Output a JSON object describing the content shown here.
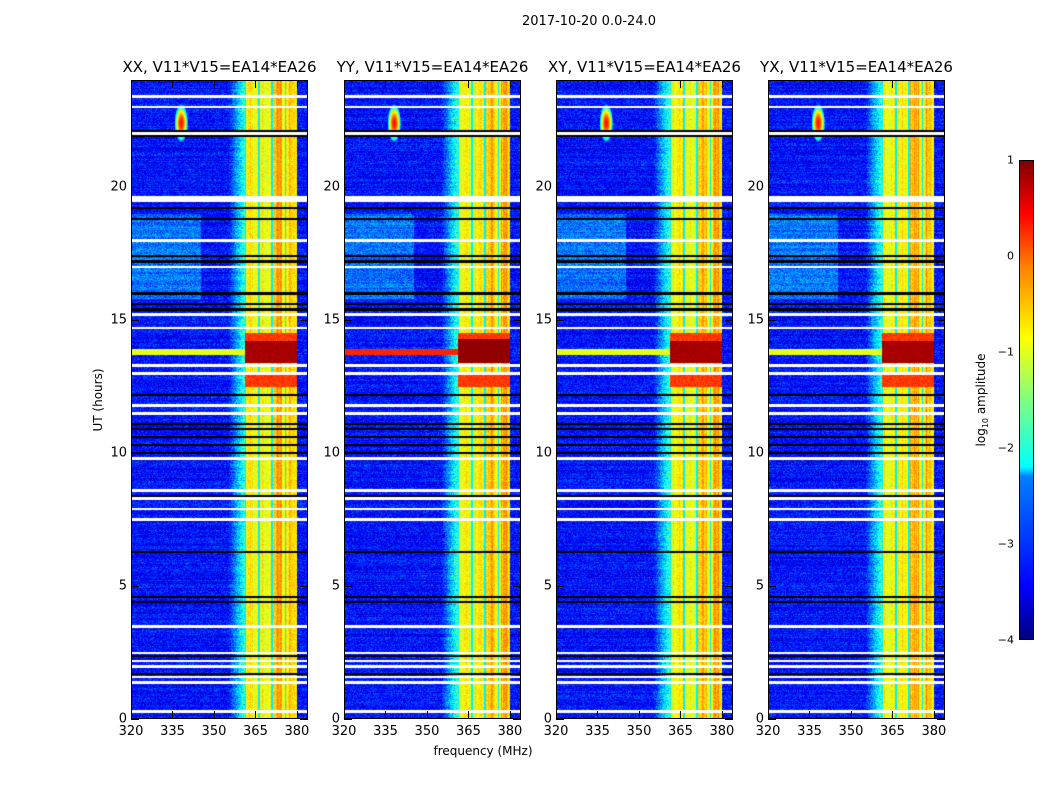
{
  "figure_title": "2017-10-20 0.0-24.0",
  "chart_data": {
    "type": "heatmap",
    "title": "2017-10-20 0.0-24.0",
    "xlabel": "frequency (MHz)",
    "ylabel": "UT (hours)",
    "xlim": [
      320,
      384
    ],
    "ylim": [
      0,
      24
    ],
    "xticks": [
      "320",
      "335",
      "350",
      "365",
      "380"
    ],
    "yticks": [
      "0",
      "5",
      "10",
      "15",
      "20"
    ],
    "panels": [
      {
        "title": "XX, V11*V15=EA14*EA26"
      },
      {
        "title": "YY, V11*V15=EA14*EA26"
      },
      {
        "title": "XY, V11*V15=EA14*EA26"
      },
      {
        "title": "YX, V11*V15=EA14*EA26"
      }
    ],
    "colorbar": {
      "label": "log",
      "label_sub": "10",
      "label_rest": " amplitude",
      "range": [
        -4,
        1
      ],
      "ticks": [
        "1",
        "0",
        "−1",
        "−2",
        "−3",
        "−4"
      ],
      "colormap": "jet"
    },
    "features": {
      "background_level": -3.3,
      "rfi_band_MHz": [
        361,
        380
      ],
      "rfi_band_level": -0.9,
      "strong_rfi_hours": [
        13.4,
        14.5
      ],
      "strong_rfi_level": 0.8,
      "point_source": {
        "freq_MHz": 338,
        "hour": 22.4,
        "level": 0.3
      },
      "flagged_white_hours": [
        0.3,
        1.4,
        1.6,
        2.0,
        2.2,
        2.5,
        3.5,
        7.5,
        7.9,
        8.3,
        8.6,
        9.8,
        11.5,
        11.8,
        13.0,
        13.3,
        14.7,
        15.2,
        17.0,
        18.0,
        19.5,
        19.6,
        22.0,
        23.0,
        23.4
      ],
      "flagged_black_hours": [
        1.7,
        2.4,
        4.4,
        4.6,
        6.3,
        8.4,
        10.0,
        10.3,
        10.6,
        10.9,
        11.1,
        12.2,
        15.4,
        15.6,
        16.0,
        17.2,
        17.4,
        18.8,
        19.2,
        22.1,
        21.9
      ]
    }
  }
}
